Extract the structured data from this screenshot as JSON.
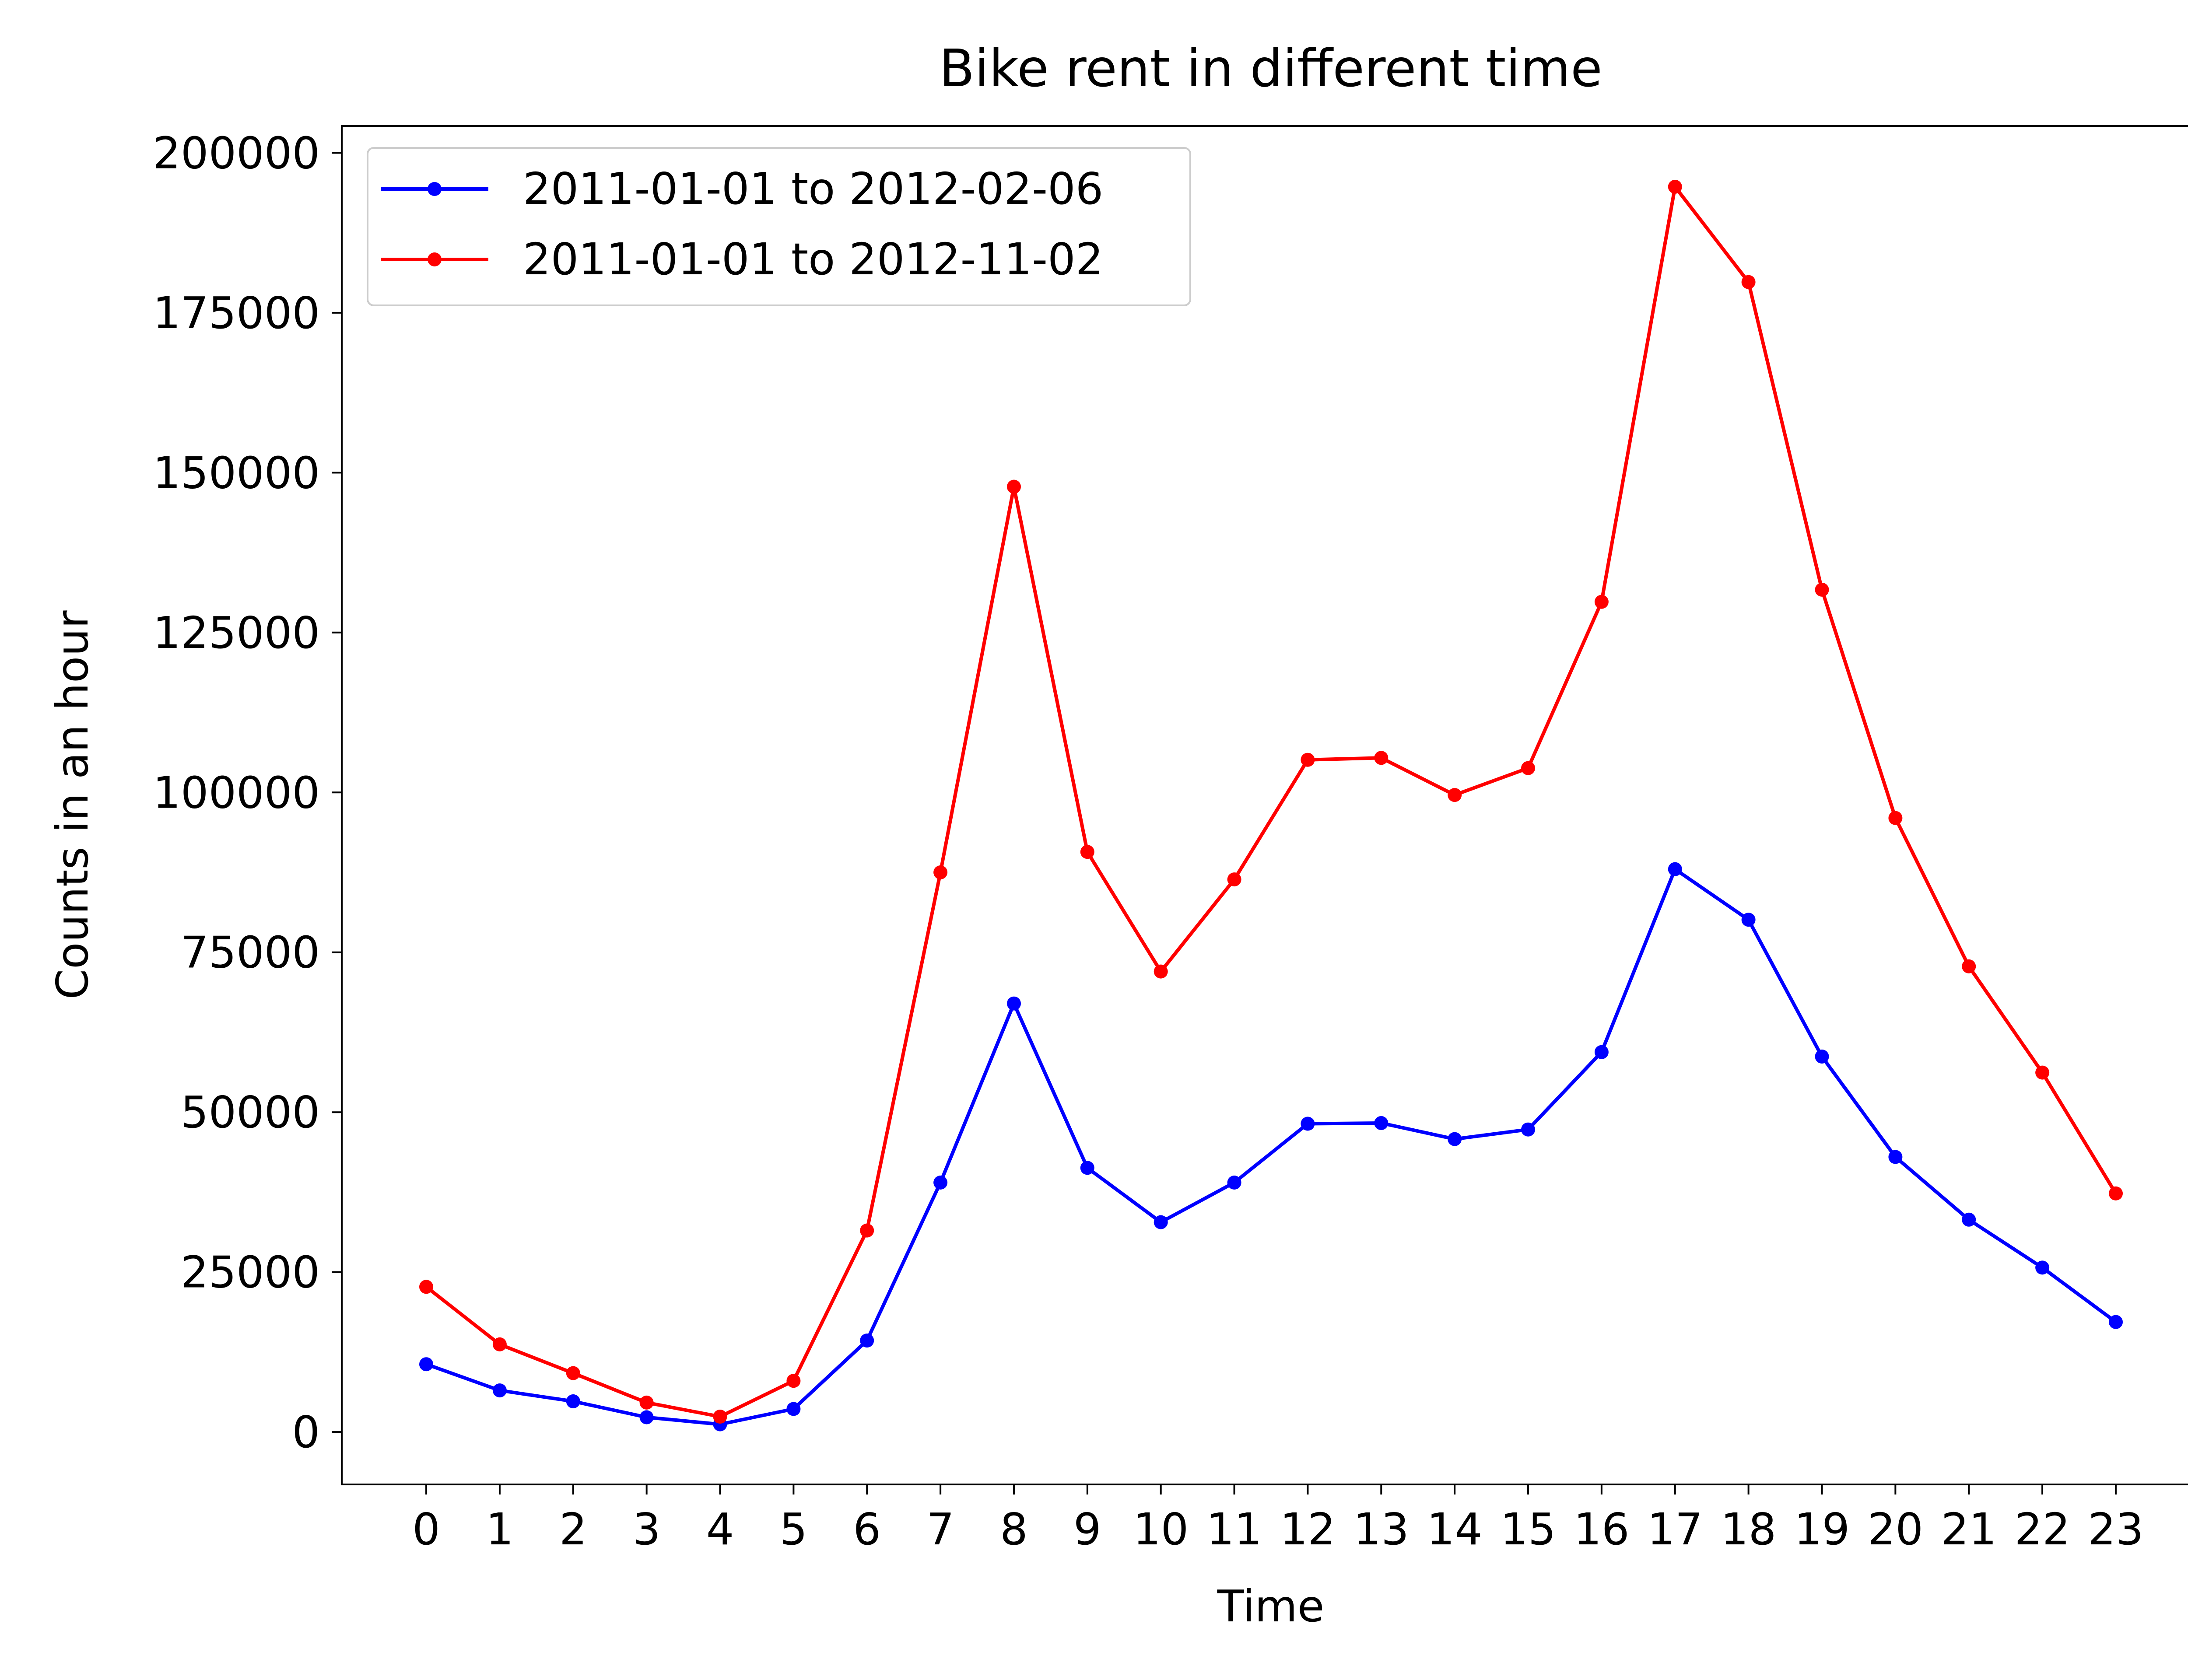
{
  "chart_data": {
    "type": "line",
    "title": "Bike rent in different time",
    "xlabel": "Time",
    "ylabel": "Counts in an hour",
    "x": [
      0,
      1,
      2,
      3,
      4,
      5,
      6,
      7,
      8,
      9,
      10,
      11,
      12,
      13,
      14,
      15,
      16,
      17,
      18,
      19,
      20,
      21,
      22,
      23
    ],
    "x_tick_labels": [
      "0",
      "1",
      "2",
      "3",
      "4",
      "5",
      "6",
      "7",
      "8",
      "9",
      "10",
      "11",
      "12",
      "13",
      "14",
      "15",
      "16",
      "17",
      "18",
      "19",
      "20",
      "21",
      "22",
      "23"
    ],
    "y_ticks": [
      0,
      25000,
      50000,
      75000,
      100000,
      125000,
      150000,
      175000,
      200000
    ],
    "y_tick_labels": [
      "0",
      "25000",
      "50000",
      "75000",
      "100000",
      "125000",
      "150000",
      "175000",
      "200000"
    ],
    "xlim": [
      -1.15,
      24.15
    ],
    "ylim": [
      -8200,
      204200
    ],
    "grid": false,
    "legend_position": "top-left",
    "series": [
      {
        "name": "2011-01-01 to 2012-02-06",
        "color": "#0000ff",
        "values": [
          10600,
          6500,
          4800,
          2300,
          1200,
          3600,
          14300,
          39000,
          67000,
          41300,
          32800,
          39000,
          48200,
          48300,
          45800,
          47300,
          59400,
          88000,
          80100,
          58700,
          43000,
          33200,
          25700,
          17200
        ]
      },
      {
        "name": "2011-01-01 to 2012-11-02",
        "color": "#ff0000",
        "values": [
          22700,
          13700,
          9200,
          4600,
          2400,
          8000,
          31500,
          87500,
          147800,
          90700,
          72000,
          86400,
          105100,
          105400,
          99600,
          103800,
          129800,
          194700,
          179800,
          131700,
          96000,
          72800,
          56200,
          37300
        ]
      }
    ]
  }
}
